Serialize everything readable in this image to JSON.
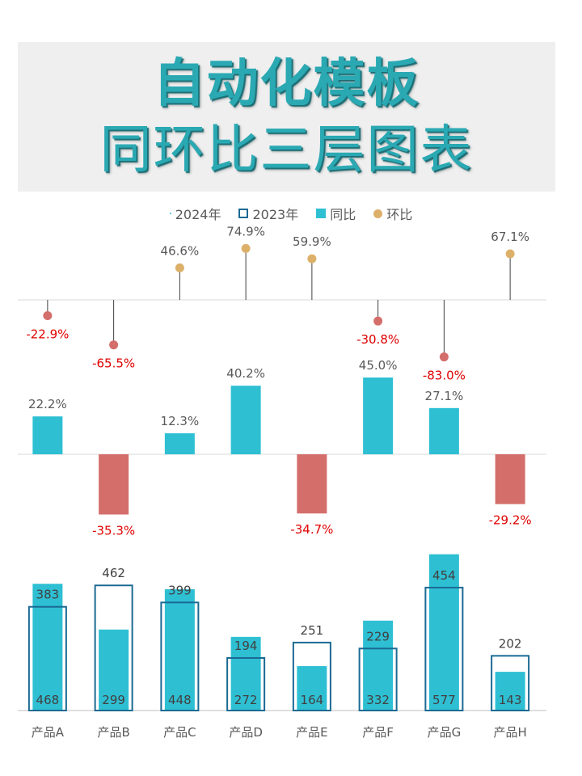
{
  "title": {
    "line1": "自动化模板",
    "line2": "同环比三层图表"
  },
  "legend": [
    {
      "label": "2024年",
      "swatch": "dot"
    },
    {
      "label": "2023年",
      "swatch": "outline"
    },
    {
      "label": "同比",
      "swatch": "fill"
    },
    {
      "label": "环比",
      "swatch": "circle"
    }
  ],
  "colors": {
    "bar_2024": "#2ebfd3",
    "outline_2023": "#1b6a93",
    "yoy_positive": "#2ebfd3",
    "yoy_negative": "#d46e6b",
    "mom_positive": "#ddb06a",
    "mom_negative": "#d46e6b",
    "negative_label": "#e00000",
    "label": "#595959"
  },
  "chart_data": {
    "type": "bar",
    "categories": [
      "产品A",
      "产品B",
      "产品C",
      "产品D",
      "产品E",
      "产品F",
      "产品G",
      "产品H"
    ],
    "series": [
      {
        "name": "2024年",
        "values": [
          468,
          299,
          448,
          272,
          164,
          332,
          577,
          143
        ]
      },
      {
        "name": "2023年",
        "values": [
          383,
          462,
          399,
          194,
          251,
          229,
          454,
          202
        ]
      },
      {
        "name": "同比",
        "values": [
          22.2,
          -35.3,
          12.3,
          40.2,
          -34.7,
          45.0,
          27.1,
          -29.2
        ],
        "unit": "%"
      },
      {
        "name": "环比",
        "values": [
          -22.9,
          -65.5,
          46.6,
          74.9,
          59.9,
          -30.8,
          -83.0,
          67.1
        ],
        "unit": "%"
      }
    ],
    "labels": {
      "yoy": [
        "22.2%",
        "-35.3%",
        "12.3%",
        "40.2%",
        "-34.7%",
        "45.0%",
        "27.1%",
        "-29.2%"
      ],
      "mom": [
        "-22.9%",
        "-65.5%",
        "46.6%",
        "74.9%",
        "59.9%",
        "-30.8%",
        "-83.0%",
        "67.1%"
      ]
    }
  }
}
